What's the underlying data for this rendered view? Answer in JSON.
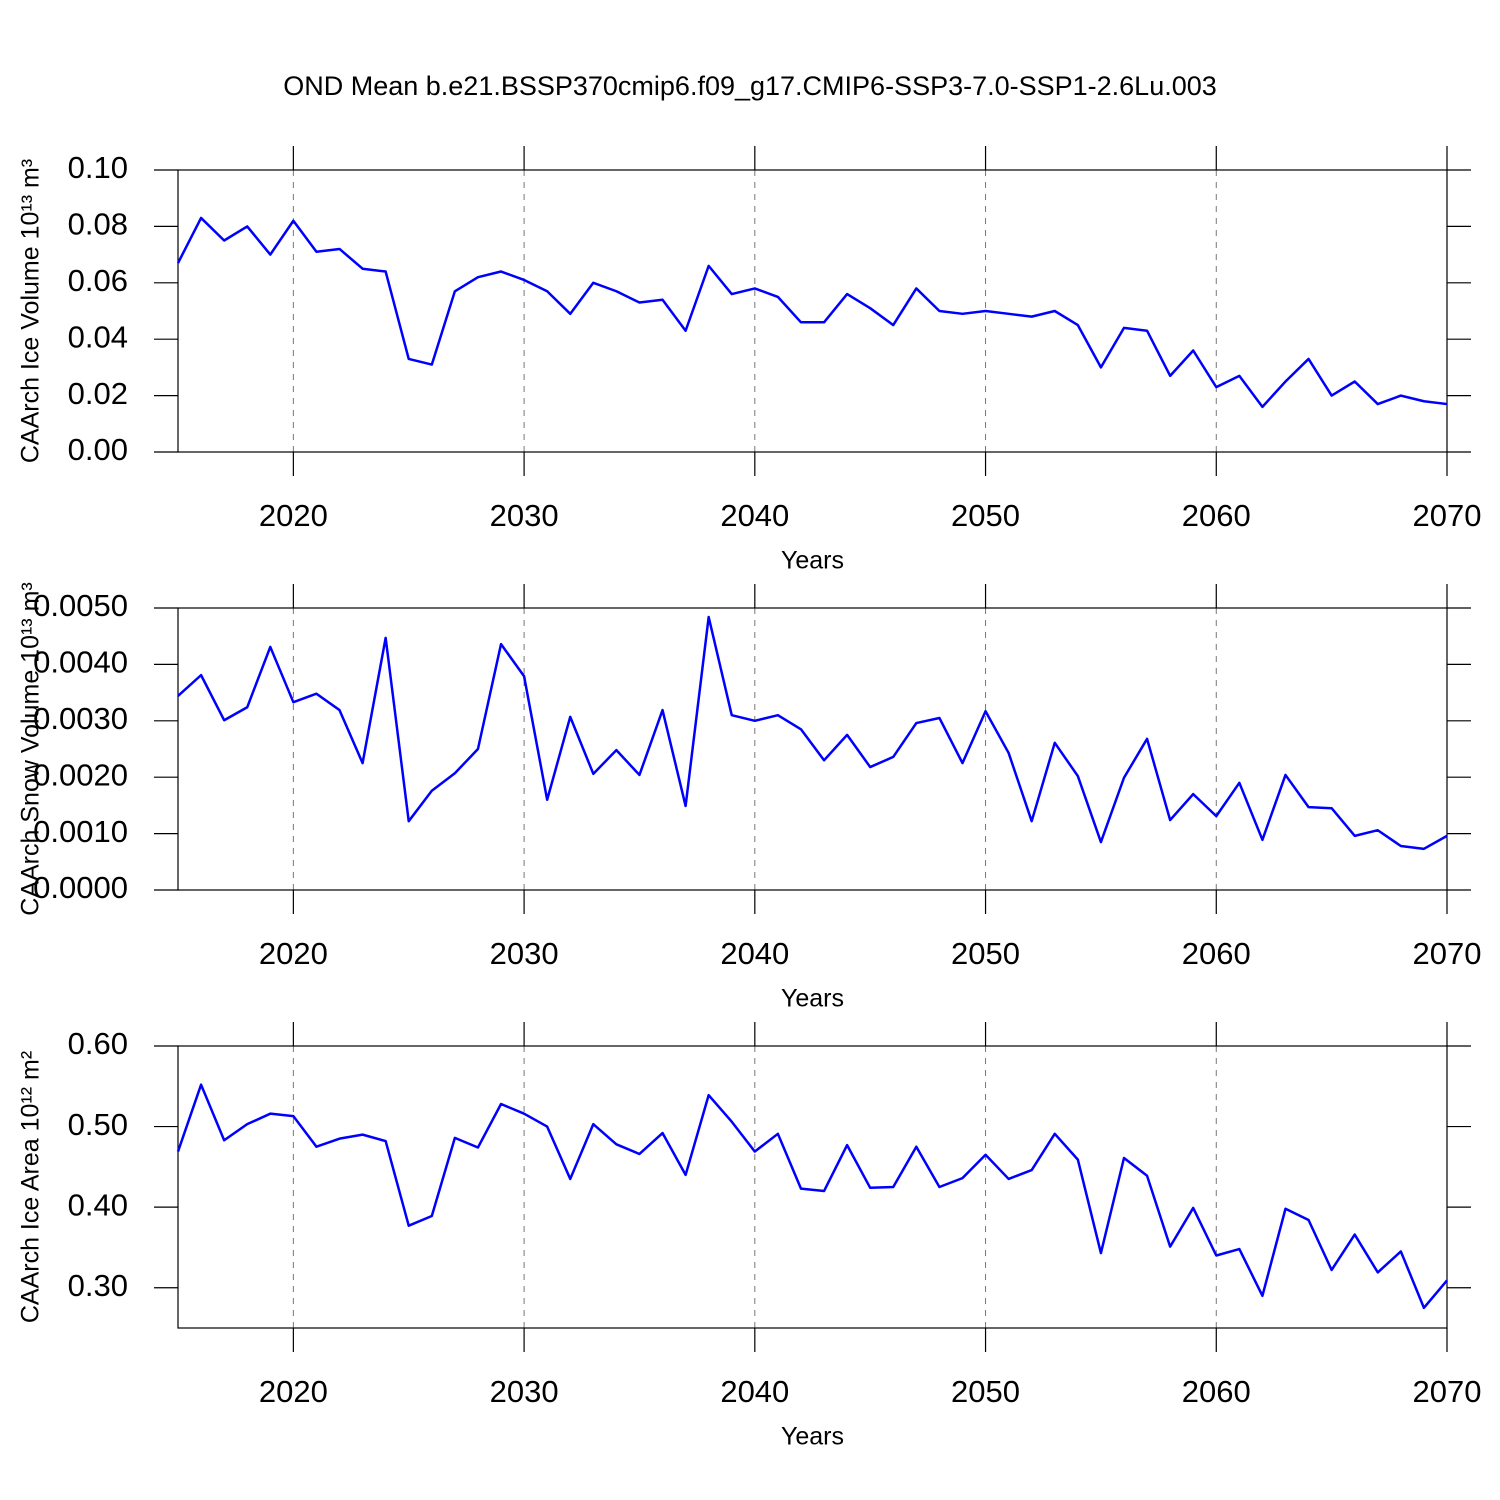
{
  "title": "OND Mean b.e21.BSSP370cmip6.f09_g17.CMIP6-SSP3-7.0-SSP1-2.6Lu.003",
  "chart_data": [
    {
      "type": "line",
      "ylabel": "CAArch Ice Volume 10¹³ m³",
      "xlabel": "Years",
      "color": "#0000ff",
      "xgrid": true,
      "x": [
        2015,
        2016,
        2017,
        2018,
        2019,
        2020,
        2021,
        2022,
        2023,
        2024,
        2025,
        2026,
        2027,
        2028,
        2029,
        2030,
        2031,
        2032,
        2033,
        2034,
        2035,
        2036,
        2037,
        2038,
        2039,
        2040,
        2041,
        2042,
        2043,
        2044,
        2045,
        2046,
        2047,
        2048,
        2049,
        2050,
        2051,
        2052,
        2053,
        2054,
        2055,
        2056,
        2057,
        2058,
        2059,
        2060,
        2061,
        2062,
        2063,
        2064,
        2065,
        2066,
        2067,
        2068,
        2069,
        2070
      ],
      "values": [
        0.067,
        0.083,
        0.075,
        0.08,
        0.07,
        0.082,
        0.071,
        0.072,
        0.065,
        0.064,
        0.033,
        0.031,
        0.057,
        0.062,
        0.064,
        0.061,
        0.057,
        0.049,
        0.06,
        0.057,
        0.053,
        0.054,
        0.043,
        0.066,
        0.056,
        0.058,
        0.055,
        0.046,
        0.046,
        0.056,
        0.051,
        0.045,
        0.058,
        0.05,
        0.049,
        0.05,
        0.049,
        0.048,
        0.05,
        0.045,
        0.03,
        0.044,
        0.043,
        0.027,
        0.036,
        0.023,
        0.027,
        0.016,
        0.025,
        0.033,
        0.02,
        0.025,
        0.017,
        0.02,
        0.018,
        0.017
      ],
      "xlim": [
        2015,
        2070
      ],
      "xticks": [
        2020,
        2030,
        2040,
        2050,
        2060,
        2070
      ],
      "ylim": [
        0,
        0.1
      ],
      "yticks": [
        {
          "value": 0,
          "label": "0.00"
        },
        0.02,
        0.04,
        0.06,
        0.08,
        {
          "value": 0.1,
          "label": "0.10"
        }
      ]
    },
    {
      "type": "line",
      "ylabel": "CAArch Snow Volume 10¹³ m³",
      "xlabel": "Years",
      "color": "#0000ff",
      "xgrid": true,
      "x": [
        2015,
        2016,
        2017,
        2018,
        2019,
        2020,
        2021,
        2022,
        2023,
        2024,
        2025,
        2026,
        2027,
        2028,
        2029,
        2030,
        2031,
        2032,
        2033,
        2034,
        2035,
        2036,
        2037,
        2038,
        2039,
        2040,
        2041,
        2042,
        2043,
        2044,
        2045,
        2046,
        2047,
        2048,
        2049,
        2050,
        2051,
        2052,
        2053,
        2054,
        2055,
        2056,
        2057,
        2058,
        2059,
        2060,
        2061,
        2062,
        2063,
        2064,
        2065,
        2066,
        2067,
        2068,
        2069,
        2070
      ],
      "values": [
        0.00344,
        0.00381,
        0.00301,
        0.00324,
        0.00431,
        0.00333,
        0.00348,
        0.00319,
        0.00225,
        0.00447,
        0.00122,
        0.00176,
        0.00207,
        0.0025,
        0.00436,
        0.00379,
        0.0016,
        0.00307,
        0.00206,
        0.00248,
        0.00204,
        0.00319,
        0.00149,
        0.00484,
        0.0031,
        0.003,
        0.0031,
        0.00285,
        0.0023,
        0.00275,
        0.00218,
        0.00236,
        0.00296,
        0.00305,
        0.00225,
        0.00317,
        0.00243,
        0.00122,
        0.00261,
        0.00202,
        0.00085,
        0.00199,
        0.00268,
        0.00124,
        0.0017,
        0.00131,
        0.0019,
        0.00089,
        0.00204,
        0.00147,
        0.00145,
        0.00096,
        0.00106,
        0.00078,
        0.00073,
        0.00096
      ],
      "xlim": [
        2015,
        2070
      ],
      "xticks": [
        2020,
        2030,
        2040,
        2050,
        2060,
        2070
      ],
      "ylim": [
        0,
        0.005
      ],
      "yticks": [
        {
          "value": 0,
          "label": "0.0000"
        },
        {
          "value": 0.001,
          "label": "0.0010"
        },
        {
          "value": 0.002,
          "label": "0.0020"
        },
        {
          "value": 0.003,
          "label": "0.0030"
        },
        {
          "value": 0.004,
          "label": "0.0040"
        },
        {
          "value": 0.005,
          "label": "0.0050"
        }
      ]
    },
    {
      "type": "line",
      "ylabel": "CAArch Ice Area 10¹² m²",
      "xlabel": "Years",
      "color": "#0000ff",
      "xgrid": true,
      "x": [
        2015,
        2016,
        2017,
        2018,
        2019,
        2020,
        2021,
        2022,
        2023,
        2024,
        2025,
        2026,
        2027,
        2028,
        2029,
        2030,
        2031,
        2032,
        2033,
        2034,
        2035,
        2036,
        2037,
        2038,
        2039,
        2040,
        2041,
        2042,
        2043,
        2044,
        2045,
        2046,
        2047,
        2048,
        2049,
        2050,
        2051,
        2052,
        2053,
        2054,
        2055,
        2056,
        2057,
        2058,
        2059,
        2060,
        2061,
        2062,
        2063,
        2064,
        2065,
        2066,
        2067,
        2068,
        2069,
        2070
      ],
      "values": [
        0.469,
        0.552,
        0.483,
        0.503,
        0.516,
        0.513,
        0.475,
        0.485,
        0.49,
        0.482,
        0.377,
        0.389,
        0.486,
        0.474,
        0.528,
        0.516,
        0.5,
        0.435,
        0.503,
        0.478,
        0.466,
        0.492,
        0.44,
        0.539,
        0.506,
        0.469,
        0.491,
        0.423,
        0.42,
        0.477,
        0.424,
        0.425,
        0.475,
        0.425,
        0.436,
        0.465,
        0.435,
        0.446,
        0.491,
        0.459,
        0.343,
        0.461,
        0.439,
        0.351,
        0.399,
        0.34,
        0.348,
        0.29,
        0.398,
        0.384,
        0.322,
        0.366,
        0.319,
        0.345,
        0.275,
        0.309
      ],
      "xlim": [
        2015,
        2070
      ],
      "xticks": [
        2020,
        2030,
        2040,
        2050,
        2060,
        2070
      ],
      "ylim": [
        0.25,
        0.6
      ],
      "yticks": [
        {
          "value": 0.3,
          "label": "0.30"
        },
        {
          "value": 0.4,
          "label": "0.40"
        },
        {
          "value": 0.5,
          "label": "0.50"
        },
        {
          "value": 0.6,
          "label": "0.60"
        }
      ]
    }
  ]
}
